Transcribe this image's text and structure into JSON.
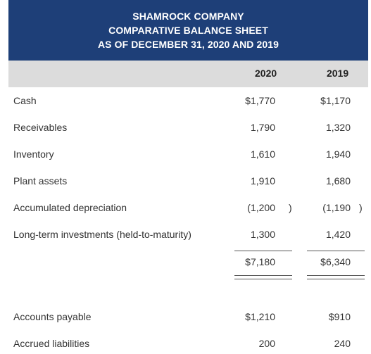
{
  "report": {
    "title_line1": "SHAMROCK COMPANY",
    "title_line2": "COMPARATIVE BALANCE SHEET",
    "title_line3": "AS OF DECEMBER 31, 2020 AND 2019",
    "col_2020": "2020",
    "col_2019": "2019"
  },
  "rows": [
    {
      "label": "Cash",
      "v2020": "$1,770",
      "v2019": "$1,170"
    },
    {
      "label": "Receivables",
      "v2020": "1,790",
      "v2019": "1,320"
    },
    {
      "label": "Inventory",
      "v2020": "1,610",
      "v2019": "1,940"
    },
    {
      "label": "Plant assets",
      "v2020": "1,910",
      "v2019": "1,680"
    },
    {
      "label": "Accumulated depreciation",
      "v2020": "(1,200",
      "v2020_close": ")",
      "v2019": "(1,190",
      "v2019_close": ")"
    },
    {
      "label": "Long-term investments (held-to-maturity)",
      "v2020": "1,300",
      "v2019": "1,420"
    }
  ],
  "total": {
    "v2020": "$7,180",
    "v2019": "$6,340"
  },
  "liabilities": [
    {
      "label": "Accounts payable",
      "v2020": "$1,210",
      "v2019": "$910"
    },
    {
      "label": "Accrued liabilities",
      "v2020": "200",
      "v2019": "240"
    }
  ],
  "colors": {
    "header_bg": "#1e3f78",
    "colhead_bg": "#dcdcdc"
  }
}
